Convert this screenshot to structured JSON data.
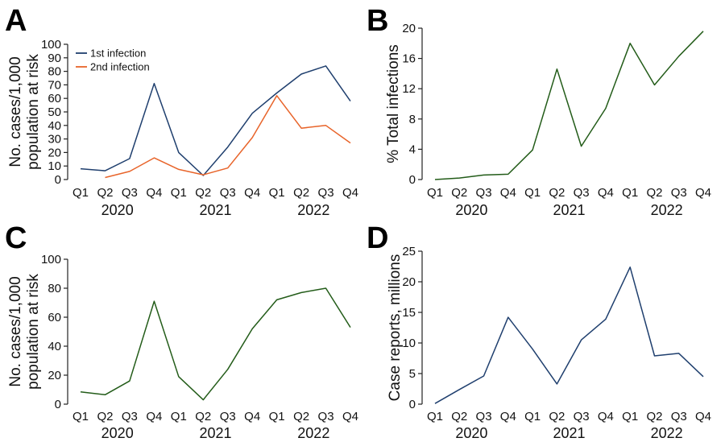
{
  "chart_data": [
    {
      "panel": "A",
      "type": "line",
      "categories": [
        "Q1",
        "Q2",
        "Q3",
        "Q4",
        "Q1",
        "Q2",
        "Q3",
        "Q4",
        "Q1",
        "Q2",
        "Q3",
        "Q4"
      ],
      "years": [
        "2020",
        "2021",
        "2022"
      ],
      "ylabel": [
        "No. cases/1,000",
        "population at risk"
      ],
      "ylim": [
        0,
        100
      ],
      "yticks": [
        0,
        10,
        20,
        30,
        40,
        50,
        60,
        70,
        80,
        90,
        100
      ],
      "legend": "top-left",
      "series": [
        {
          "name": "1st infection",
          "color": "#1f3f6e",
          "values": [
            8,
            6.5,
            15.5,
            71,
            20,
            3,
            24,
            49,
            64,
            78,
            84,
            58
          ]
        },
        {
          "name": "2nd infection",
          "color": "#e8642a",
          "values": [
            null,
            1.5,
            6,
            16,
            7.5,
            3.5,
            8.5,
            31,
            62,
            38,
            40,
            27
          ]
        }
      ]
    },
    {
      "panel": "B",
      "type": "line",
      "categories": [
        "Q1",
        "Q2",
        "Q3",
        "Q4",
        "Q1",
        "Q2",
        "Q3",
        "Q4",
        "Q1",
        "Q2",
        "Q3",
        "Q4"
      ],
      "years": [
        "2020",
        "2021",
        "2022"
      ],
      "ylabel": [
        "% Total infections"
      ],
      "ylim": [
        0,
        20
      ],
      "yticks": [
        0,
        4,
        8,
        12,
        16,
        20
      ],
      "series": [
        {
          "name": "% Total infections",
          "color": "#235c19",
          "values": [
            0,
            0.2,
            0.6,
            0.7,
            3.9,
            14.6,
            4.4,
            9.4,
            18.0,
            12.5,
            16.3,
            19.6
          ]
        }
      ]
    },
    {
      "panel": "C",
      "type": "line",
      "categories": [
        "Q1",
        "Q2",
        "Q3",
        "Q4",
        "Q1",
        "Q2",
        "Q3",
        "Q4",
        "Q1",
        "Q2",
        "Q3",
        "Q4"
      ],
      "years": [
        "2020",
        "2021",
        "2022"
      ],
      "ylabel": [
        "No. cases/1,000",
        "population at risk"
      ],
      "ylim": [
        0,
        100
      ],
      "yticks": [
        0,
        20,
        40,
        60,
        80,
        100
      ],
      "series": [
        {
          "name": "Cases per 1,000",
          "color": "#235c19",
          "values": [
            8.5,
            6.5,
            16,
            71,
            19,
            3,
            24,
            52,
            72,
            77,
            80,
            53
          ]
        }
      ]
    },
    {
      "panel": "D",
      "type": "line",
      "categories": [
        "Q1",
        "Q2",
        "Q3",
        "Q4",
        "Q1",
        "Q2",
        "Q3",
        "Q4",
        "Q1",
        "Q2",
        "Q3",
        "Q4"
      ],
      "years": [
        "2020",
        "2021",
        "2022"
      ],
      "ylabel": [
        "Case reports, millions"
      ],
      "ylim": [
        0,
        25
      ],
      "yticks": [
        0,
        5,
        10,
        15,
        20,
        25
      ],
      "series": [
        {
          "name": "Case reports",
          "color": "#1f3f6e",
          "values": [
            0.1,
            2.4,
            4.6,
            14.2,
            9.0,
            3.3,
            10.5,
            13.9,
            22.4,
            7.9,
            8.3,
            4.5
          ]
        }
      ]
    }
  ]
}
